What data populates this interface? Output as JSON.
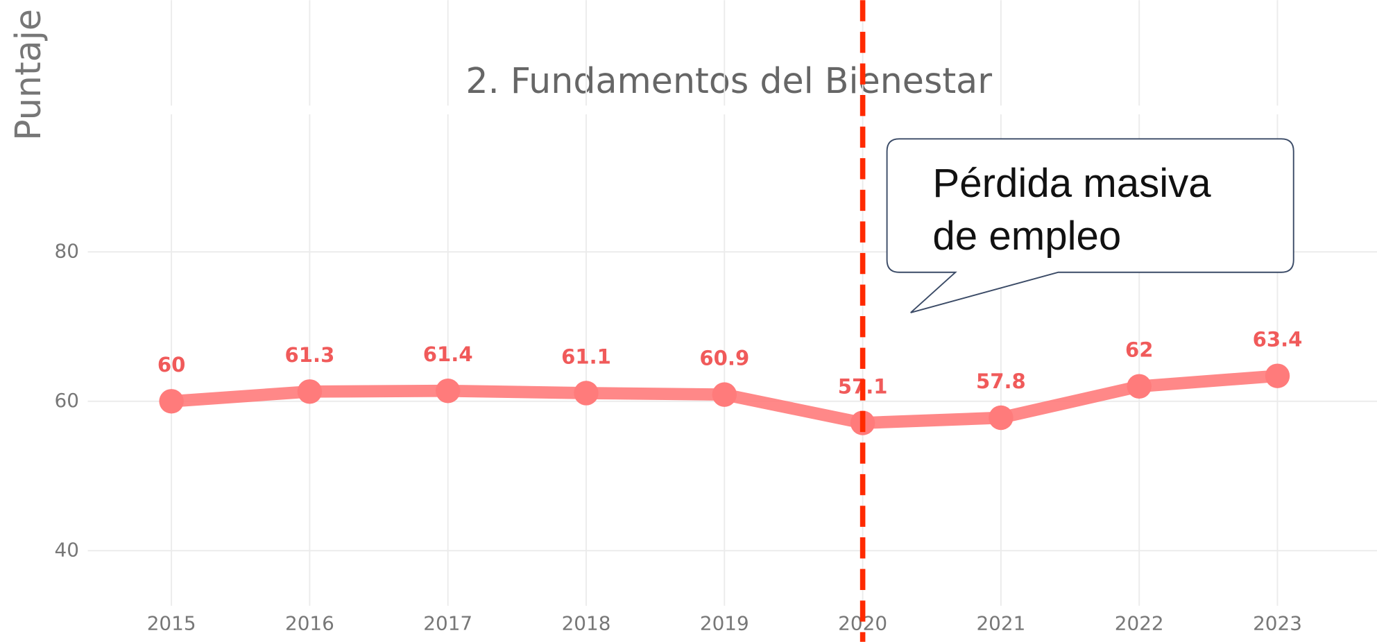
{
  "chart_data": {
    "type": "line",
    "title": "2. Fundamentos del Bienestar",
    "y_label": "Puntaje",
    "x": [
      2015,
      2016,
      2017,
      2018,
      2019,
      2020,
      2021,
      2022,
      2023
    ],
    "series": [
      {
        "name": "2. Fundamentos del Bienestar",
        "color": "#ff7b7b",
        "values": [
          60,
          61.3,
          61.4,
          61.1,
          60.9,
          57.1,
          57.8,
          62,
          63.4
        ]
      }
    ],
    "xlim": [
      2013.76,
      2023.72
    ],
    "xticks": [
      2015,
      2016,
      2017,
      2018,
      2019,
      2020,
      2021,
      2022,
      2023
    ],
    "ylim": [
      27.8,
      113.7
    ],
    "yticks": [
      40,
      60,
      80
    ],
    "grid": true,
    "vline": {
      "x": 2020,
      "color": "#ff2a00"
    },
    "annotation": [
      "Pérdida masiva",
      "de empleo"
    ]
  }
}
